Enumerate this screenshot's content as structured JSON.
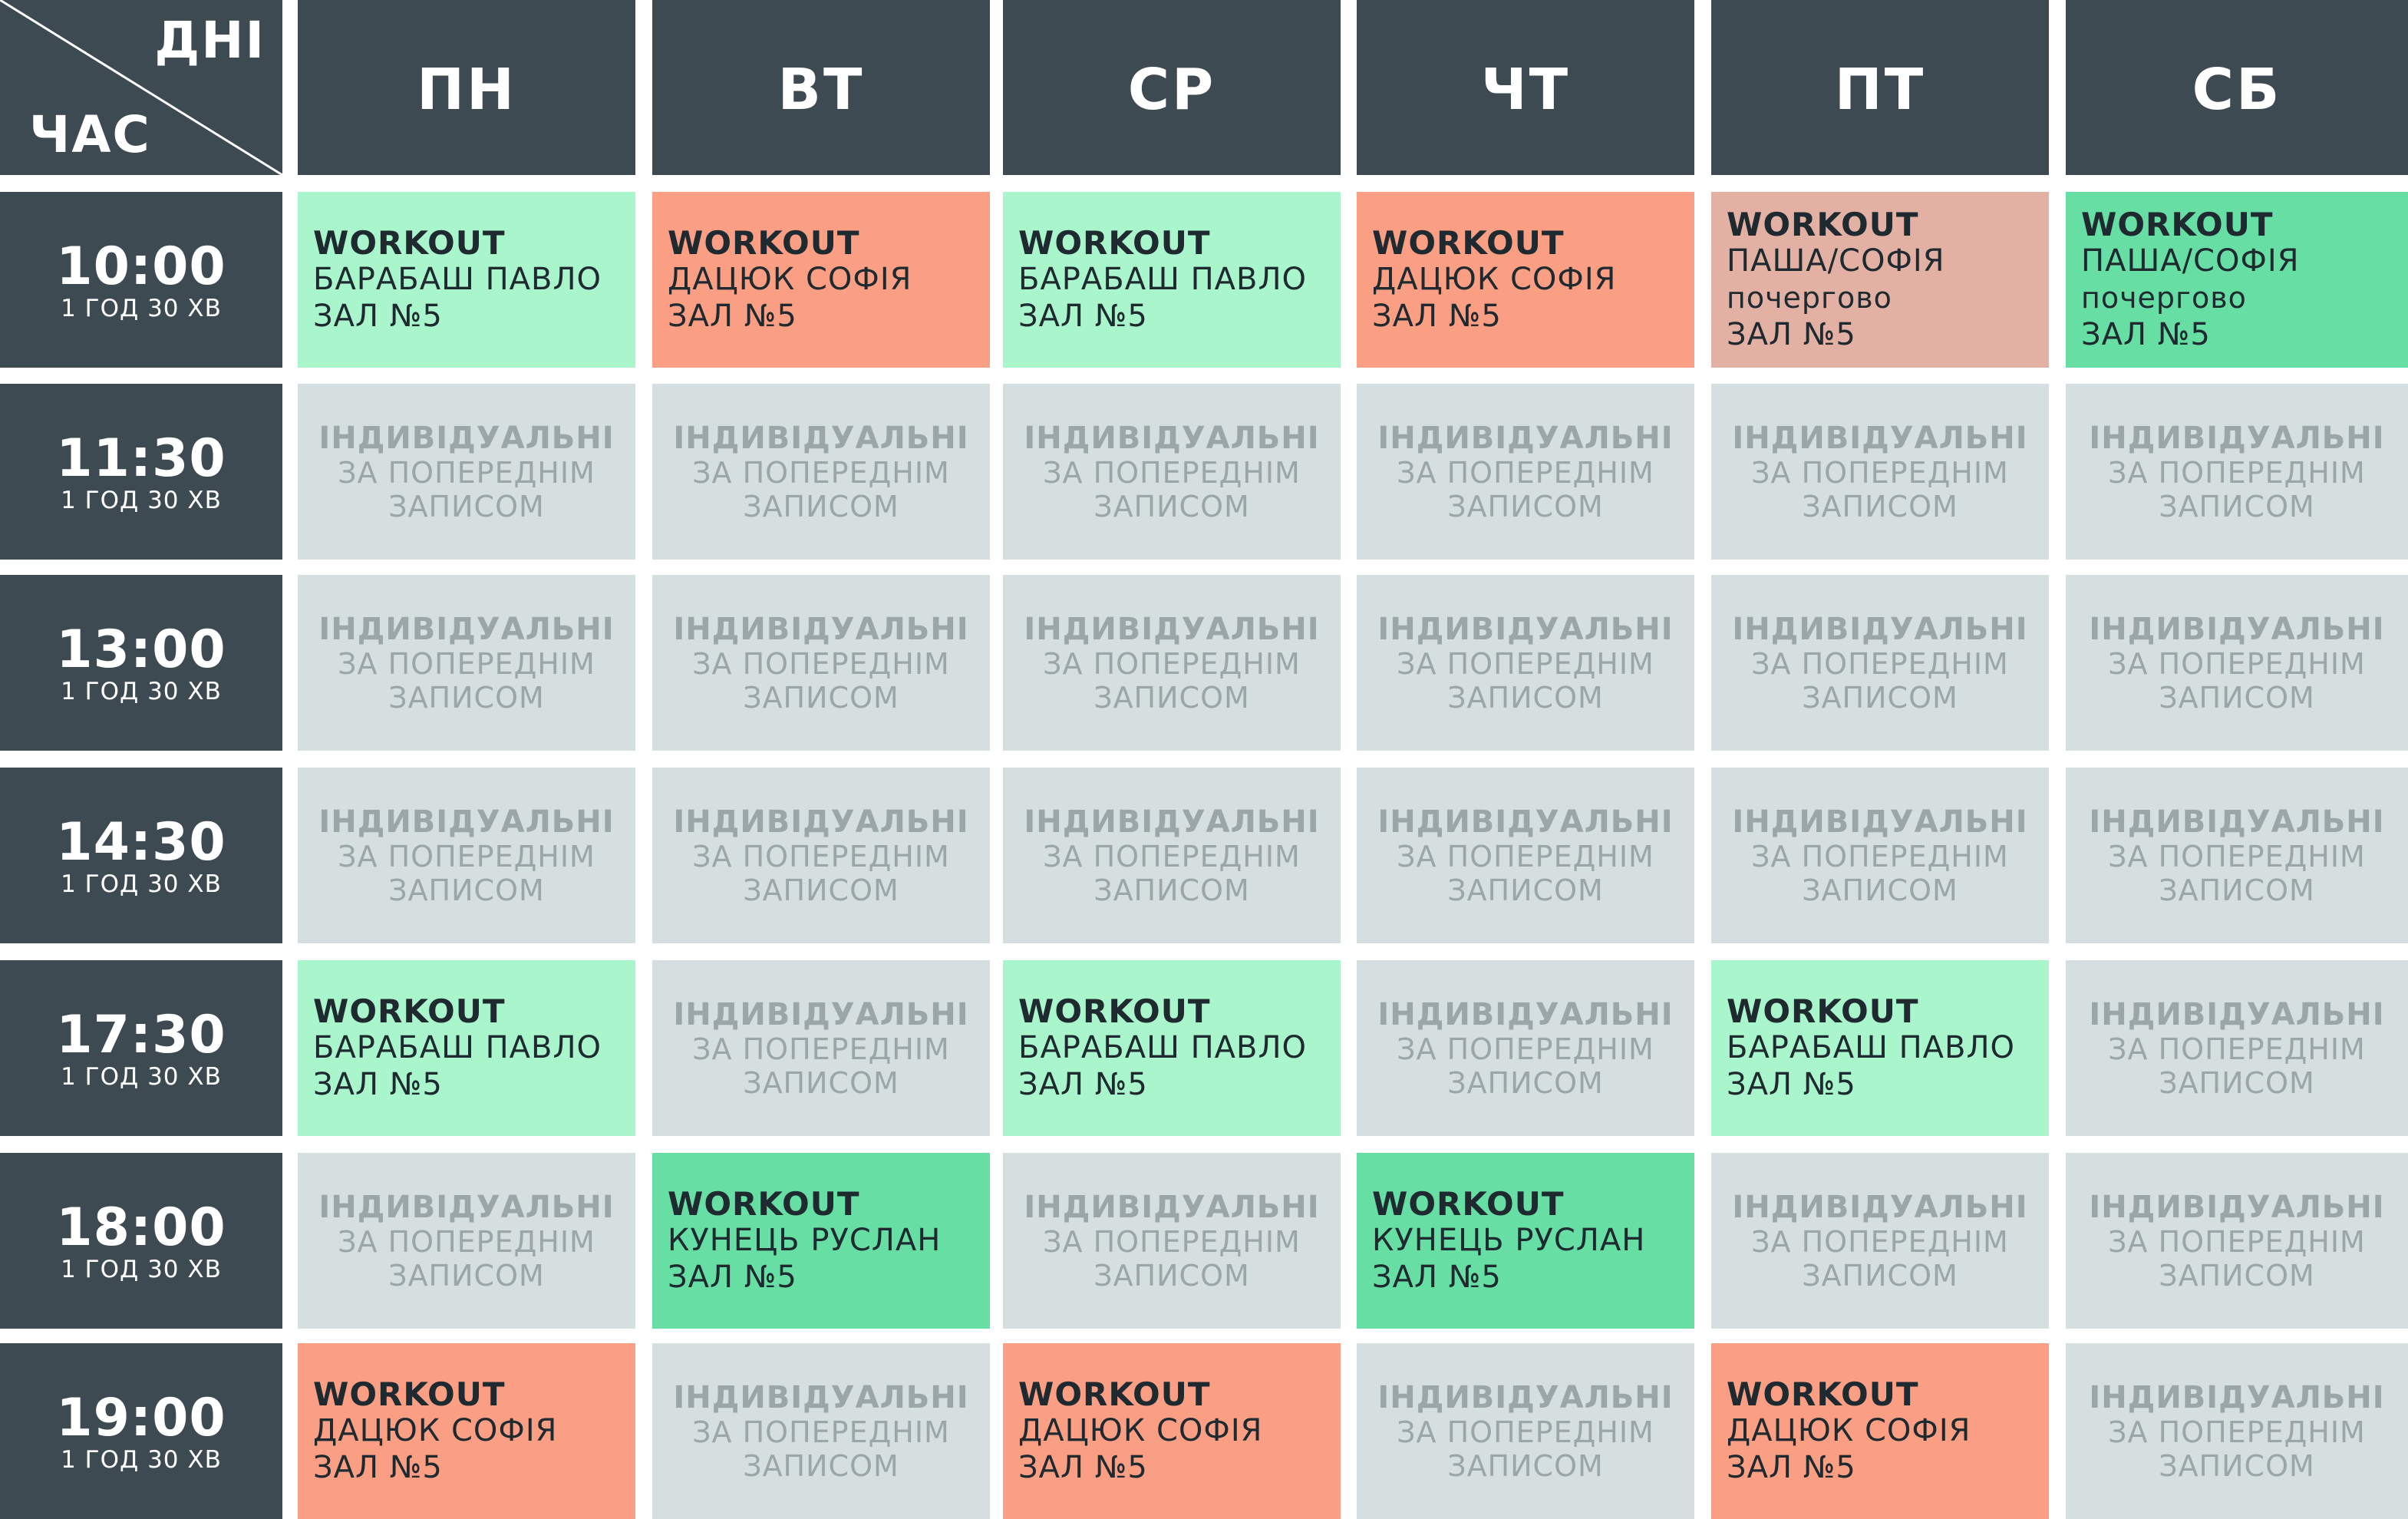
{
  "colors": {
    "header": "#3d4a52",
    "light_green": "#a9f5cc",
    "green": "#66dea4",
    "salmon": "#fb9f84",
    "dusty_pink": "#e3b0a4",
    "individual": "#d6dfdf",
    "individual_text": "#9aa6a8"
  },
  "corner": {
    "days_label": "ДНІ",
    "time_label": "ЧАС"
  },
  "days": [
    "ПН",
    "ВТ",
    "СР",
    "ЧТ",
    "ПТ",
    "СБ"
  ],
  "times": [
    {
      "time": "10:00",
      "duration": "1 ГОД 30 ХВ"
    },
    {
      "time": "11:30",
      "duration": "1 ГОД 30 ХВ"
    },
    {
      "time": "13:00",
      "duration": "1 ГОД 30 ХВ"
    },
    {
      "time": "14:30",
      "duration": "1 ГОД 30 ХВ"
    },
    {
      "time": "17:30",
      "duration": "1 ГОД 30 ХВ"
    },
    {
      "time": "18:00",
      "duration": "1 ГОД 30 ХВ"
    },
    {
      "time": "19:00",
      "duration": "1 ГОД 30 ХВ"
    }
  ],
  "individual": {
    "line1": "ІНДИВІДУАЛЬНІ",
    "line2": "ЗА ПОПЕРЕДНІМ",
    "line3": "ЗАПИСОМ"
  },
  "schedule": [
    [
      {
        "kind": "workout",
        "color": "light_green",
        "title": "WORKOUT",
        "name": "БАРАБАШ ПАВЛО",
        "hall": "ЗАЛ №5"
      },
      {
        "kind": "workout",
        "color": "salmon",
        "title": "WORKOUT",
        "name": "ДАЦЮК СОФІЯ",
        "hall": "ЗАЛ №5"
      },
      {
        "kind": "workout",
        "color": "light_green",
        "title": "WORKOUT",
        "name": "БАРАБАШ ПАВЛО",
        "hall": "ЗАЛ №5"
      },
      {
        "kind": "workout",
        "color": "salmon",
        "title": "WORKOUT",
        "name": "ДАЦЮК СОФІЯ",
        "hall": "ЗАЛ №5"
      },
      {
        "kind": "workout",
        "color": "dusty_pink",
        "title": "WORKOUT",
        "name": "ПАША/СОФІЯ",
        "note": "почергово",
        "hall": "ЗАЛ №5"
      },
      {
        "kind": "workout",
        "color": "green",
        "title": "WORKOUT",
        "name": "ПАША/СОФІЯ",
        "note": "почергово",
        "hall": "ЗАЛ №5"
      }
    ],
    [
      {
        "kind": "individual"
      },
      {
        "kind": "individual"
      },
      {
        "kind": "individual"
      },
      {
        "kind": "individual"
      },
      {
        "kind": "individual"
      },
      {
        "kind": "individual"
      }
    ],
    [
      {
        "kind": "individual"
      },
      {
        "kind": "individual"
      },
      {
        "kind": "individual"
      },
      {
        "kind": "individual"
      },
      {
        "kind": "individual"
      },
      {
        "kind": "individual"
      }
    ],
    [
      {
        "kind": "individual"
      },
      {
        "kind": "individual"
      },
      {
        "kind": "individual"
      },
      {
        "kind": "individual"
      },
      {
        "kind": "individual"
      },
      {
        "kind": "individual"
      }
    ],
    [
      {
        "kind": "workout",
        "color": "light_green",
        "title": "WORKOUT",
        "name": "БАРАБАШ ПАВЛО",
        "hall": "ЗАЛ №5"
      },
      {
        "kind": "individual"
      },
      {
        "kind": "workout",
        "color": "light_green",
        "title": "WORKOUT",
        "name": "БАРАБАШ ПАВЛО",
        "hall": "ЗАЛ №5"
      },
      {
        "kind": "individual"
      },
      {
        "kind": "workout",
        "color": "light_green",
        "title": "WORKOUT",
        "name": "БАРАБАШ ПАВЛО",
        "hall": "ЗАЛ №5"
      },
      {
        "kind": "individual"
      }
    ],
    [
      {
        "kind": "individual"
      },
      {
        "kind": "workout",
        "color": "green",
        "title": "WORKOUT",
        "name": "КУНЕЦЬ РУСЛАН",
        "hall": "ЗАЛ №5"
      },
      {
        "kind": "individual"
      },
      {
        "kind": "workout",
        "color": "green",
        "title": "WORKOUT",
        "name": "КУНЕЦЬ РУСЛАН",
        "hall": "ЗАЛ №5"
      },
      {
        "kind": "individual"
      },
      {
        "kind": "individual"
      }
    ],
    [
      {
        "kind": "workout",
        "color": "salmon",
        "title": "WORKOUT",
        "name": "ДАЦЮК СОФІЯ",
        "hall": "ЗАЛ №5"
      },
      {
        "kind": "individual"
      },
      {
        "kind": "workout",
        "color": "salmon",
        "title": "WORKOUT",
        "name": "ДАЦЮК СОФІЯ",
        "hall": "ЗАЛ №5"
      },
      {
        "kind": "individual"
      },
      {
        "kind": "workout",
        "color": "salmon",
        "title": "WORKOUT",
        "name": "ДАЦЮК СОФІЯ",
        "hall": "ЗАЛ №5"
      },
      {
        "kind": "individual"
      }
    ]
  ]
}
